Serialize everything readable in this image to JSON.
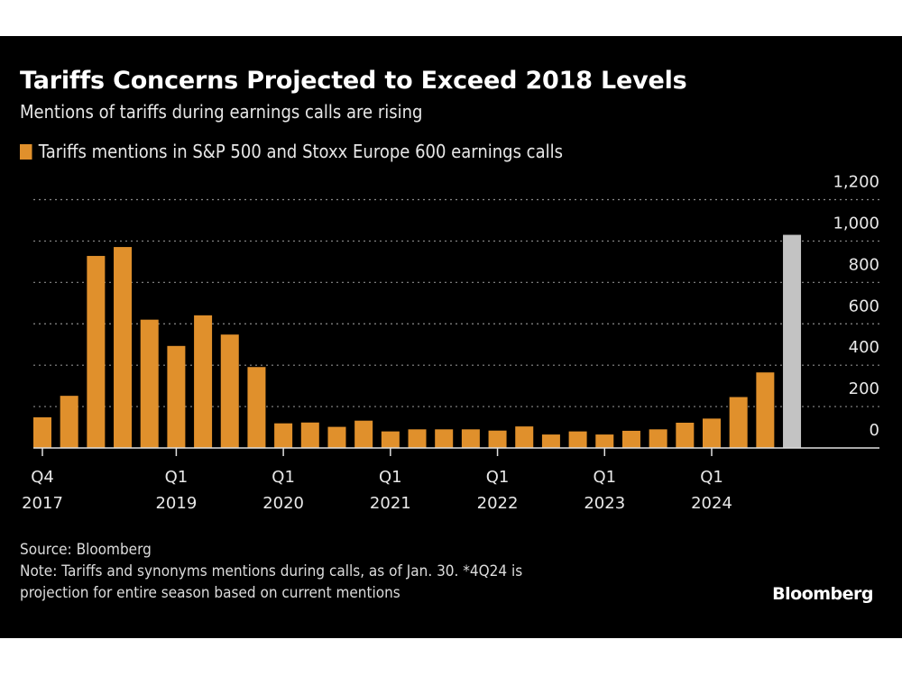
{
  "chart_data": {
    "type": "bar",
    "title": "Tariffs Concerns Projected to Exceed 2018 Levels",
    "subtitle": "Mentions of tariffs during earnings calls are rising",
    "legend": [
      {
        "name": "Tariffs mentions in S&P 500 and Stoxx Europe 600 earnings calls",
        "color": "#e0902c"
      }
    ],
    "legend_placement": "top-left",
    "categories": [
      "Q4 2017",
      "Q1 2018",
      "Q2 2018",
      "Q3 2018",
      "Q4 2018",
      "Q1 2019",
      "Q2 2019",
      "Q3 2019",
      "Q4 2019",
      "Q1 2020",
      "Q2 2020",
      "Q3 2020",
      "Q4 2020",
      "Q1 2021",
      "Q2 2021",
      "Q3 2021",
      "Q4 2021",
      "Q1 2022",
      "Q2 2022",
      "Q3 2022",
      "Q4 2022",
      "Q1 2023",
      "Q2 2023",
      "Q3 2023",
      "Q4 2023",
      "Q1 2024",
      "Q2 2024",
      "Q3 2024",
      "Q4 2024"
    ],
    "values": [
      148,
      252,
      928,
      971,
      620,
      493,
      641,
      548,
      391,
      119,
      123,
      102,
      132,
      80,
      90,
      90,
      90,
      84,
      104,
      65,
      80,
      65,
      83,
      90,
      122,
      142,
      246,
      365,
      1030
    ],
    "projected_index": 28,
    "colors": {
      "bar": "#e0902c",
      "projection": "#c3c3c3",
      "background": "#000000",
      "grid": "#8a8a8a",
      "text": "#e8e8e8"
    },
    "x_tick_labels": [
      {
        "index": 0,
        "line1": "Q4",
        "line2": "2017"
      },
      {
        "index": 5,
        "line1": "Q1",
        "line2": "2019"
      },
      {
        "index": 9,
        "line1": "Q1",
        "line2": "2020"
      },
      {
        "index": 13,
        "line1": "Q1",
        "line2": "2021"
      },
      {
        "index": 17,
        "line1": "Q1",
        "line2": "2022"
      },
      {
        "index": 21,
        "line1": "Q1",
        "line2": "2023"
      },
      {
        "index": 25,
        "line1": "Q1",
        "line2": "2024"
      }
    ],
    "y_ticks": [
      0,
      200,
      400,
      600,
      800,
      1000,
      1200
    ],
    "y_tick_labels": [
      "0",
      "200",
      "400",
      "600",
      "800",
      "1,000",
      "1,200"
    ],
    "ylim": [
      0,
      1200
    ],
    "y_axis_side": "right",
    "grid": true,
    "xlabel": "",
    "ylabel": ""
  },
  "footer": {
    "source": "Source: Bloomberg",
    "note_line1": "Note: Tariffs and synonyms mentions during calls, as of Jan. 30. *4Q24 is",
    "note_line2": "projection for entire season based on current mentions",
    "logo": "Bloomberg"
  }
}
